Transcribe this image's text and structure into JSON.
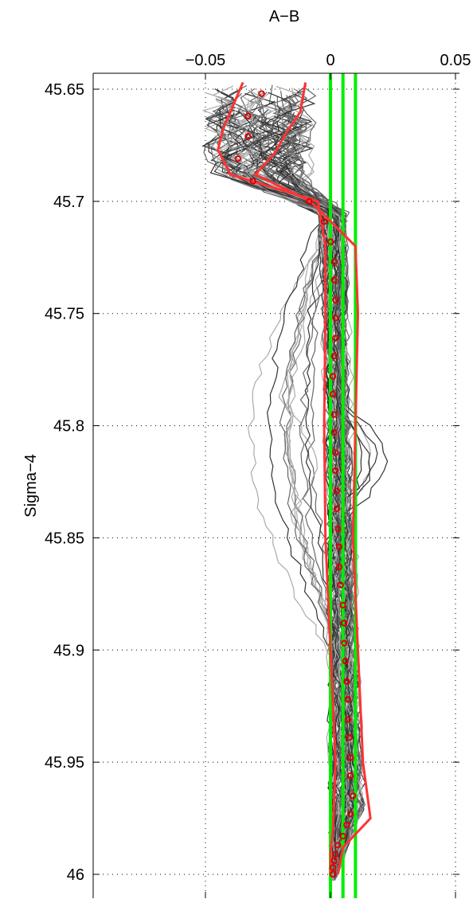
{
  "chart_data": {
    "type": "line",
    "title": "",
    "xlabel": "A−B",
    "ylabel": "Sigma−4",
    "xlim": [
      -0.095,
      0.055
    ],
    "ylim": [
      45.645,
      46.005
    ],
    "y_reversed": true,
    "x_axis_location": "top",
    "grid": true,
    "x_ticks": [
      {
        "value": -0.05,
        "label": "−0.05"
      },
      {
        "value": 0,
        "label": "0"
      },
      {
        "value": 0.05,
        "label": "0.05"
      }
    ],
    "y_ticks": [
      {
        "value": 45.65,
        "label": "45.65"
      },
      {
        "value": 45.7,
        "label": "45.7"
      },
      {
        "value": 45.75,
        "label": "45.75"
      },
      {
        "value": 45.8,
        "label": "45.8"
      },
      {
        "value": 45.85,
        "label": "45.85"
      },
      {
        "value": 45.9,
        "label": "45.9"
      },
      {
        "value": 45.95,
        "label": "45.95"
      },
      {
        "value": 46,
        "label": "46"
      }
    ],
    "colors": {
      "envelope": "#ff3333",
      "mean_markers": "#dd0000",
      "vertical_lines": "#00ee00",
      "profiles_dark": "#333333",
      "profiles_mid": "#666666",
      "profiles_light": "#aaaaaa"
    },
    "vertical_lines": [
      0,
      0.005,
      0.01
    ],
    "mean_profile": {
      "sigma": [
        45.652,
        45.662,
        45.671,
        45.681,
        45.691,
        45.7,
        45.709,
        45.718,
        45.727,
        45.735,
        45.744,
        45.752,
        45.761,
        45.769,
        45.778,
        45.786,
        45.795,
        45.803,
        45.812,
        45.82,
        45.829,
        45.837,
        45.846,
        45.854,
        45.863,
        45.871,
        45.88,
        45.888,
        45.897,
        45.905,
        45.914,
        45.922,
        45.931,
        45.939,
        45.948,
        45.956,
        45.965,
        45.973,
        45.978,
        45.983,
        45.987,
        45.991,
        45.994,
        45.997,
        46.0
      ],
      "value": [
        -0.0275,
        -0.033,
        -0.033,
        -0.037,
        -0.031,
        -0.0085,
        -0.0025,
        0.0,
        0.0015,
        0.0015,
        0.002,
        0.002,
        0.002,
        0.0015,
        0.001,
        0.001,
        0.0015,
        0.0015,
        0.002,
        0.002,
        0.0025,
        0.0025,
        0.003,
        0.0035,
        0.0035,
        0.004,
        0.005,
        0.0055,
        0.0055,
        0.006,
        0.0065,
        0.007,
        0.007,
        0.0075,
        0.008,
        0.008,
        0.009,
        0.008,
        0.0065,
        0.005,
        0.003,
        0.002,
        0.0015,
        0.001,
        0.001
      ]
    },
    "envelope_left": {
      "sigma": [
        45.647,
        45.66,
        45.668,
        45.677,
        45.688,
        45.7,
        45.72,
        45.75,
        45.8,
        45.85,
        45.9,
        45.95,
        45.98,
        45.99,
        46.0
      ],
      "value": [
        -0.035,
        -0.04,
        -0.043,
        -0.045,
        -0.04,
        -0.005,
        -0.002,
        -0.002,
        -0.0025,
        -0.002,
        0.0,
        0.002,
        0.001,
        0.0,
        0.0
      ]
    },
    "envelope_right": {
      "sigma": [
        45.647,
        45.66,
        45.67,
        45.678,
        45.688,
        45.7,
        45.72,
        45.75,
        45.8,
        45.85,
        45.9,
        45.95,
        45.975,
        45.988,
        46.0
      ],
      "value": [
        -0.01,
        -0.012,
        -0.018,
        -0.022,
        -0.03,
        -0.008,
        0.01,
        0.011,
        0.01,
        0.009,
        0.011,
        0.013,
        0.016,
        0.005,
        0.003
      ]
    }
  }
}
